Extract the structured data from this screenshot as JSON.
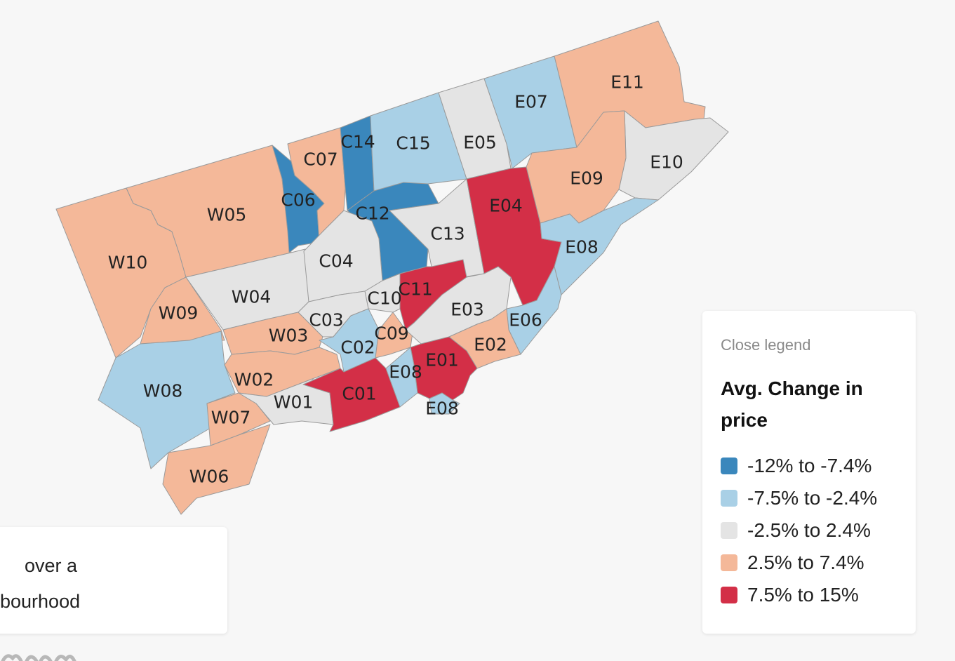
{
  "map": {
    "colors": {
      "dark_blue": "#3a87bc",
      "light_blue": "#a9d0e6",
      "grey": "#e4e4e4",
      "peach": "#f4b899",
      "red": "#d32f47"
    },
    "districts": [
      {
        "code": "W10",
        "value": "2.5% to 7.4%"
      },
      {
        "code": "W05",
        "value": "2.5% to 7.4%"
      },
      {
        "code": "W09",
        "value": "2.5% to 7.4%"
      },
      {
        "code": "W04",
        "value": "-2.5% to 2.4%"
      },
      {
        "code": "W08",
        "value": "-7.5% to -2.4%"
      },
      {
        "code": "W03",
        "value": "2.5% to 7.4%"
      },
      {
        "code": "W02",
        "value": "2.5% to 7.4%"
      },
      {
        "code": "W07",
        "value": "2.5% to 7.4%"
      },
      {
        "code": "W06",
        "value": "2.5% to 7.4%"
      },
      {
        "code": "W01",
        "value": "-2.5% to 2.4%"
      },
      {
        "code": "C06",
        "value": "-12% to -7.4%"
      },
      {
        "code": "C07",
        "value": "2.5% to 7.4%"
      },
      {
        "code": "C14",
        "value": "-12% to -7.4%"
      },
      {
        "code": "C15",
        "value": "-7.5% to -2.4%"
      },
      {
        "code": "C12",
        "value": "-12% to -7.4%"
      },
      {
        "code": "C13",
        "value": "-2.5% to 2.4%"
      },
      {
        "code": "C04",
        "value": "-2.5% to 2.4%"
      },
      {
        "code": "C10",
        "value": "-2.5% to 2.4%"
      },
      {
        "code": "C11",
        "value": "7.5% to 15%"
      },
      {
        "code": "C03",
        "value": "-2.5% to 2.4%"
      },
      {
        "code": "C02",
        "value": "-7.5% to -2.4%"
      },
      {
        "code": "C09",
        "value": "2.5% to 7.4%"
      },
      {
        "code": "C01",
        "value": "7.5% to 15%"
      },
      {
        "code": "E05",
        "value": "-2.5% to 2.4%"
      },
      {
        "code": "E07",
        "value": "-7.5% to -2.4%"
      },
      {
        "code": "E11",
        "value": "2.5% to 7.4%"
      },
      {
        "code": "E10",
        "value": "-2.5% to 2.4%"
      },
      {
        "code": "E09",
        "value": "2.5% to 7.4%"
      },
      {
        "code": "E04",
        "value": "7.5% to 15%"
      },
      {
        "code": "E08",
        "value": "-7.5% to -2.4%"
      },
      {
        "code": "E03",
        "value": "-2.5% to 2.4%"
      },
      {
        "code": "E06",
        "value": "-7.5% to -2.4%"
      },
      {
        "code": "E02",
        "value": "2.5% to 7.4%"
      },
      {
        "code": "E01",
        "value": "7.5% to 15%"
      },
      {
        "code": "E08",
        "value": "-7.5% to -2.4%"
      },
      {
        "code": "E08",
        "value": "-7.5% to -2.4%"
      }
    ]
  },
  "legend": {
    "close_label": "Close legend",
    "title": "Avg. Change in price",
    "items": [
      {
        "label": "-12% to -7.4%",
        "color": "#3a87bc"
      },
      {
        "label": "-7.5% to -2.4%",
        "color": "#a9d0e6"
      },
      {
        "label": "-2.5% to 2.4%",
        "color": "#e4e4e4"
      },
      {
        "label": "2.5% to 7.4%",
        "color": "#f4b899"
      },
      {
        "label": "7.5% to 15%",
        "color": "#d32f47"
      }
    ]
  },
  "info": {
    "line1": "over a",
    "line2": "bourhood"
  }
}
